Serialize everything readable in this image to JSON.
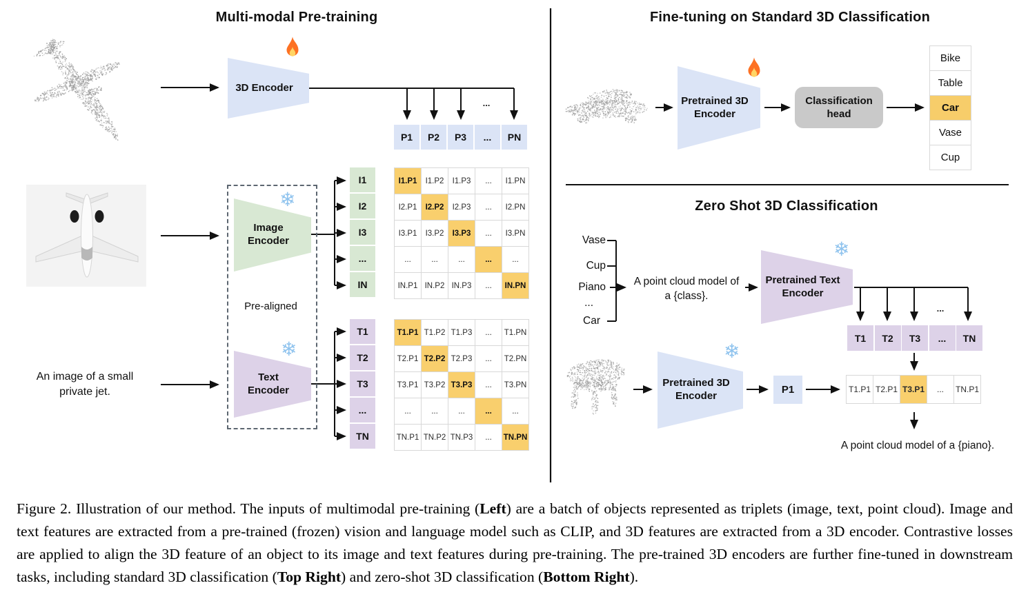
{
  "ellipsis": "...",
  "icons": {
    "snowflake": "❄"
  },
  "pretraining": {
    "title": "Multi-modal Pre-training",
    "inputs": {
      "text_line1": "An image of a small",
      "text_line2": "private jet."
    },
    "encoder_3d_label": "3D Encoder",
    "image_encoder_line1": "Image",
    "image_encoder_line2": "Encoder",
    "text_encoder_line1": "Text",
    "text_encoder_line2": "Encoder",
    "pre_aligned": "Pre-aligned",
    "p_row": [
      "P1",
      "P2",
      "P3",
      "...",
      "PN"
    ],
    "i_labels": [
      "I1",
      "I2",
      "I3",
      "...",
      "IN"
    ],
    "t_labels": [
      "T1",
      "T2",
      "T3",
      "...",
      "TN"
    ],
    "i_matrix": [
      [
        "I1.P1",
        "I1.P2",
        "I1.P3",
        "...",
        "I1.PN"
      ],
      [
        "I2.P1",
        "I2.P2",
        "I2.P3",
        "...",
        "I2.PN"
      ],
      [
        "I3.P1",
        "I3.P2",
        "I3.P3",
        "...",
        "I3.PN"
      ],
      [
        "...",
        "...",
        "...",
        "...",
        "..."
      ],
      [
        "IN.P1",
        "IN.P2",
        "IN.P3",
        "...",
        "IN.PN"
      ]
    ],
    "t_matrix": [
      [
        "T1.P1",
        "T1.P2",
        "T1.P3",
        "...",
        "T1.PN"
      ],
      [
        "T2.P1",
        "T2.P2",
        "T2.P3",
        "...",
        "T2.PN"
      ],
      [
        "T3.P1",
        "T3.P2",
        "T3.P3",
        "...",
        "T3.PN"
      ],
      [
        "...",
        "...",
        "...",
        "...",
        "..."
      ],
      [
        "TN.P1",
        "TN.P2",
        "TN.P3",
        "...",
        "TN.PN"
      ]
    ]
  },
  "fine_tuning": {
    "title": "Fine-tuning on Standard 3D Classification",
    "encoder_line1": "Pretrained 3D",
    "encoder_line2": "Encoder",
    "head_line1": "Classification",
    "head_line2": "head",
    "classes": [
      "Bike",
      "Table",
      "Car",
      "Vase",
      "Cup"
    ],
    "predicted_class": "Car"
  },
  "zero_shot": {
    "title": "Zero Shot 3D Classification",
    "classes": [
      "Vase",
      "Cup",
      "Piano",
      "...",
      "Car"
    ],
    "prompt_line1": "A point cloud model of",
    "prompt_line2": "a {class}.",
    "text_encoder_line1": "Pretrained Text",
    "text_encoder_line2": "Encoder",
    "t_row": [
      "T1",
      "T2",
      "T3",
      "...",
      "TN"
    ],
    "encoder_3d_line1": "Pretrained 3D",
    "encoder_3d_line2": "Encoder",
    "p_cell": "P1",
    "sim_row": [
      "T1.P1",
      "T2.P1",
      "T3.P1",
      "...",
      "TN.P1"
    ],
    "sim_highlight": "T3.P1",
    "result_text": "A point cloud model of a {piano}."
  },
  "colors": {
    "encoder_blue": "#dbe4f6",
    "encoder_green": "#d8e8d3",
    "encoder_purple": "#ddd2e8",
    "highlight_orange": "#f9cf6d",
    "head_gray": "#c9c9c9"
  },
  "caption": {
    "part1": "Figure 2. Illustration of our method. The inputs of multimodal pre-training (",
    "bold1": "Left",
    "part2": ") are a batch of objects represented as triplets (image, text, point cloud). Image and text features are extracted from a pre-trained (frozen) vision and language model such as CLIP, and 3D features are extracted from a 3D encoder. Contrastive losses are applied to align the 3D feature of an object to its image and text features during pre-training. The pre-trained 3D encoders are further fine-tuned in downstream tasks, including standard 3D classification (",
    "bold2": "Top Right",
    "part3": ") and zero-shot 3D classification (",
    "bold3": "Bottom Right",
    "part4": ")."
  }
}
